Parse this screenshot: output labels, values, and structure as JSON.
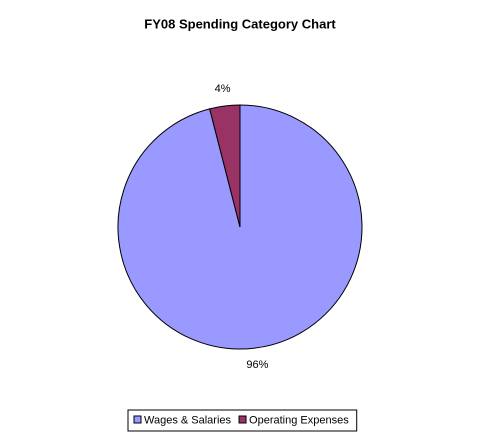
{
  "chart_data": {
    "type": "pie",
    "title": "FY08 Spending Category Chart",
    "categories": [
      "Wages & Salaries",
      "Operating Expenses"
    ],
    "values": [
      96,
      4
    ],
    "value_labels": [
      "96%",
      "4%"
    ],
    "colors": [
      "#9999ff",
      "#993366"
    ],
    "legend": "bottom"
  }
}
